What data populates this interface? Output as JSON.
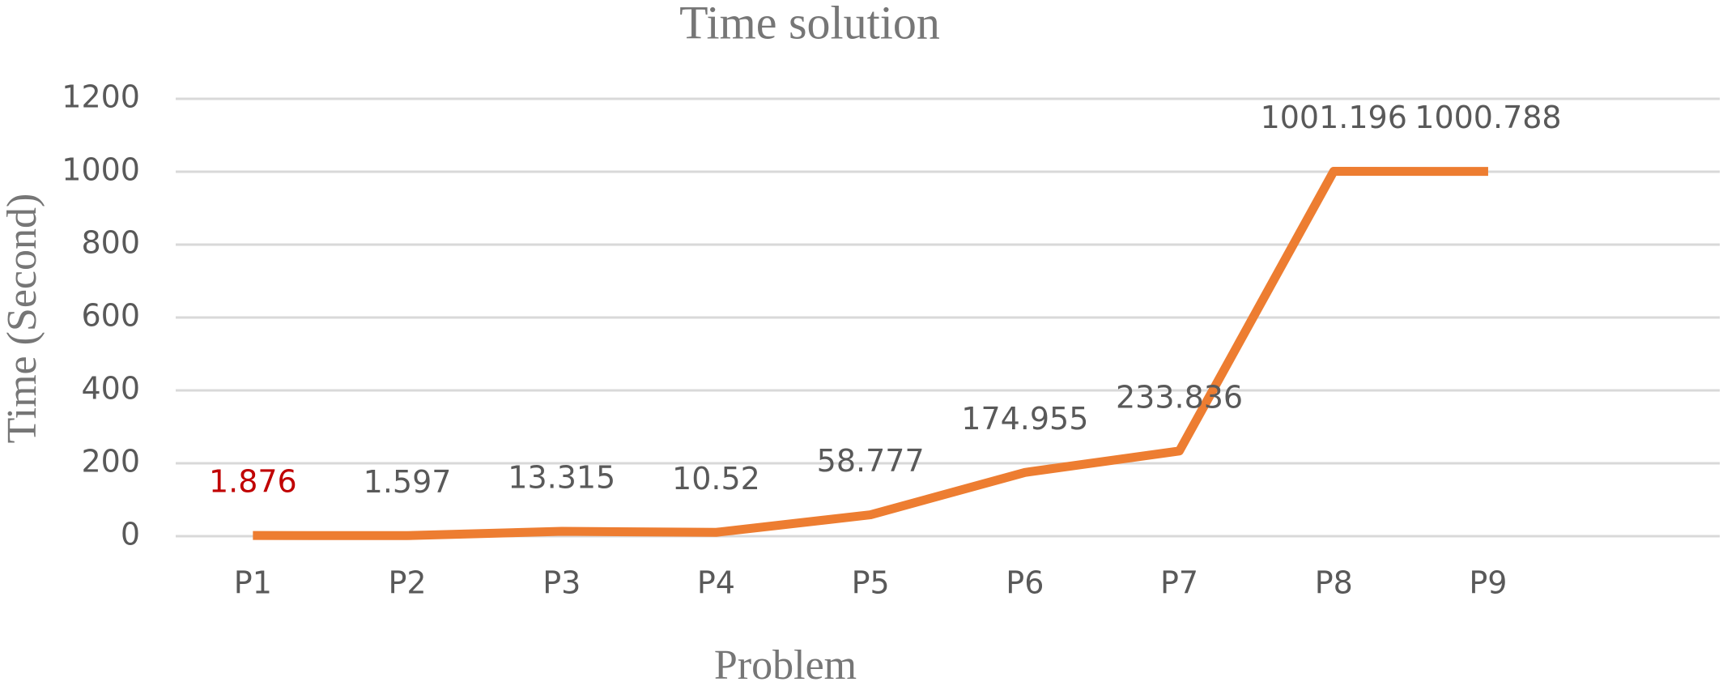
{
  "chart_data": {
    "type": "line",
    "title": "Time solution",
    "x_label": "Problem",
    "y_label": "Time (Second)",
    "categories": [
      "P1",
      "P2",
      "P3",
      "P4",
      "P5",
      "P6",
      "P7",
      "P8",
      "P9",
      null
    ],
    "series": [
      {
        "name": "Time",
        "color": "#ed7d31",
        "values": [
          1.876,
          1.597,
          13.315,
          10.52,
          58.777,
          174.955,
          233.836,
          1001.196,
          1000.788,
          null
        ]
      }
    ],
    "value_label_colors": [
      "#c00000",
      "#595959",
      "#595959",
      "#595959",
      "#595959",
      "#595959",
      "#595959",
      "#595959",
      "#595959",
      "#595959"
    ],
    "ylim": [
      0,
      1200
    ],
    "yticks": [
      0,
      200,
      400,
      600,
      800,
      1000,
      1200
    ],
    "grid": true
  }
}
